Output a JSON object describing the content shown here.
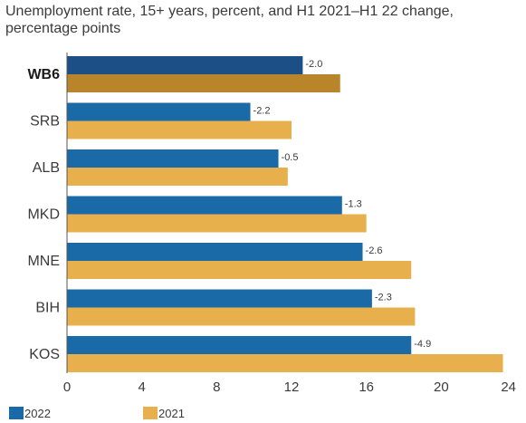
{
  "chart_data": {
    "type": "bar",
    "orientation": "horizontal",
    "title": "Unemployment rate, 15+ years, percent, and H1 2021–H1 22 change, percentage points",
    "categories": [
      "WB6",
      "SRB",
      "ALB",
      "MKD",
      "MNE",
      "BIH",
      "KOS"
    ],
    "series": [
      {
        "name": "2022",
        "values": [
          12.6,
          9.8,
          11.3,
          14.7,
          15.8,
          16.3,
          18.4
        ],
        "color": "#1a6aa8"
      },
      {
        "name": "2021",
        "values": [
          14.6,
          12.0,
          11.8,
          16.0,
          18.4,
          18.6,
          23.3
        ],
        "color": "#e8b04c"
      }
    ],
    "highlight": {
      "category": "WB6",
      "colors": {
        "2022": "#1b4f86",
        "2021": "#b8852a"
      }
    },
    "annotations": [
      "-2.0",
      "-2.2",
      "-0.5",
      "-1.3",
      "-2.6",
      "-2.3",
      "-4.9"
    ],
    "xlim": [
      0,
      24
    ],
    "xticks": [
      "0",
      "4",
      "8",
      "12",
      "16",
      "20",
      "24"
    ],
    "grid": false,
    "legend_position": "bottom-left"
  }
}
